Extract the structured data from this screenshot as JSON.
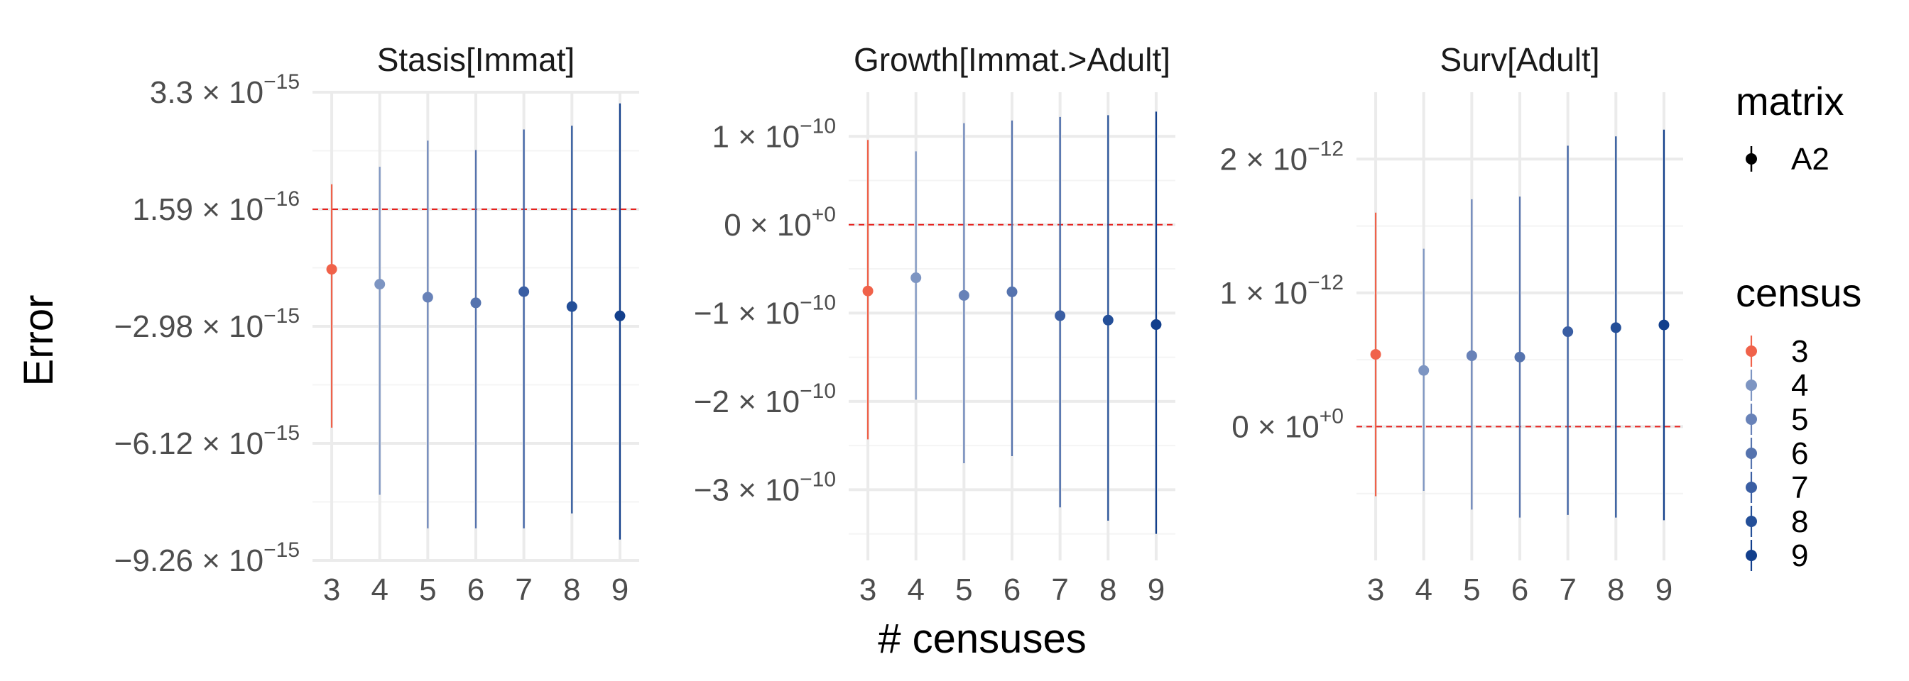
{
  "chart_data": {
    "type": "errorbar",
    "xlabel": "# censuses",
    "ylabel": "Error",
    "x_categories": [
      "3",
      "4",
      "5",
      "6",
      "7",
      "8",
      "9"
    ],
    "reference_line": 0,
    "facets": [
      {
        "title": "Stasis[Immat]",
        "y_ticks": [
          {
            "value": 3.3e-15,
            "mant": "3.3",
            "exp": "−15"
          },
          {
            "value": 1.59e-16,
            "mant": "1.59",
            "exp": "−16"
          },
          {
            "value": -2.98e-15,
            "mant": "−2.98",
            "exp": "−15"
          },
          {
            "value": -6.12e-15,
            "mant": "−6.12",
            "exp": "−15"
          },
          {
            "value": -9.26e-15,
            "mant": "−9.26",
            "exp": "−15"
          }
        ],
        "ylim": [
          -9.26e-15,
          3.3e-15
        ],
        "ref_value": 1.59e-16,
        "points": [
          {
            "x": "3",
            "y": -1.45e-15,
            "low": -5.7e-15,
            "high": 8.3e-16
          },
          {
            "x": "4",
            "y": -1.85e-15,
            "low": -7.5e-15,
            "high": 1.3e-15
          },
          {
            "x": "5",
            "y": -2.2e-15,
            "low": -8.4e-15,
            "high": 2e-15
          },
          {
            "x": "6",
            "y": -2.35e-15,
            "low": -8.4e-15,
            "high": 1.75e-15
          },
          {
            "x": "7",
            "y": -2.05e-15,
            "low": -8.4e-15,
            "high": 2.3e-15
          },
          {
            "x": "8",
            "y": -2.45e-15,
            "low": -8e-15,
            "high": 2.4e-15
          },
          {
            "x": "9",
            "y": -2.7e-15,
            "low": -8.7e-15,
            "high": 3e-15
          }
        ]
      },
      {
        "title": "Growth[Immat.>Adult]",
        "y_ticks": [
          {
            "value": 1e-10,
            "mant": "1",
            "exp": "−10"
          },
          {
            "value": 0,
            "mant": "0",
            "exp": "+0"
          },
          {
            "value": -1e-10,
            "mant": "−1",
            "exp": "−10"
          },
          {
            "value": -2e-10,
            "mant": "−2",
            "exp": "−10"
          },
          {
            "value": -3e-10,
            "mant": "−3",
            "exp": "−10"
          }
        ],
        "ylim": [
          -3.8e-10,
          1.5e-10
        ],
        "ref_value": 0,
        "points": [
          {
            "x": "3",
            "y": -7.5e-11,
            "low": -2.43e-10,
            "high": 9.6e-11
          },
          {
            "x": "4",
            "y": -6e-11,
            "low": -1.98e-10,
            "high": 8.3e-11
          },
          {
            "x": "5",
            "y": -8e-11,
            "low": -2.7e-10,
            "high": 1.15e-10
          },
          {
            "x": "6",
            "y": -7.6e-11,
            "low": -2.62e-10,
            "high": 1.18e-10
          },
          {
            "x": "7",
            "y": -1.03e-10,
            "low": -3.2e-10,
            "high": 1.22e-10
          },
          {
            "x": "8",
            "y": -1.08e-10,
            "low": -3.35e-10,
            "high": 1.24e-10
          },
          {
            "x": "9",
            "y": -1.13e-10,
            "low": -3.5e-10,
            "high": 1.28e-10
          }
        ]
      },
      {
        "title": "Surv[Adult]",
        "y_ticks": [
          {
            "value": 2e-12,
            "mant": "2",
            "exp": "−12"
          },
          {
            "value": 1e-12,
            "mant": "1",
            "exp": "−12"
          },
          {
            "value": 0,
            "mant": "0",
            "exp": "+0"
          }
        ],
        "ylim": [
          -1e-12,
          2.5e-12
        ],
        "ref_value": 0,
        "points": [
          {
            "x": "3",
            "y": 5.4e-13,
            "low": -5.2e-13,
            "high": 1.6e-12
          },
          {
            "x": "4",
            "y": 4.2e-13,
            "low": -4.8e-13,
            "high": 1.33e-12
          },
          {
            "x": "5",
            "y": 5.3e-13,
            "low": -6.2e-13,
            "high": 1.7e-12
          },
          {
            "x": "6",
            "y": 5.2e-13,
            "low": -6.8e-13,
            "high": 1.72e-12
          },
          {
            "x": "7",
            "y": 7.1e-13,
            "low": -6.6e-13,
            "high": 2.1e-12
          },
          {
            "x": "8",
            "y": 7.4e-13,
            "low": -6.8e-13,
            "high": 2.17e-12
          },
          {
            "x": "9",
            "y": 7.6e-13,
            "low": -7e-13,
            "high": 2.22e-12
          }
        ]
      }
    ],
    "legend": {
      "position": "right",
      "matrix": {
        "title": "matrix",
        "entries": [
          "A2"
        ]
      },
      "census": {
        "title": "census",
        "entries": [
          "3",
          "4",
          "5",
          "6",
          "7",
          "8",
          "9"
        ]
      }
    },
    "colors": {
      "3": "#f0624a",
      "4": "#7d95c2",
      "5": "#6882b8",
      "6": "#5573ae",
      "7": "#3a5ea3",
      "8": "#244f98",
      "9": "#123f8c",
      "grid_major": "#ebebeb",
      "grid_minor": "#f4f4f4",
      "reference": "#e8201c"
    }
  }
}
